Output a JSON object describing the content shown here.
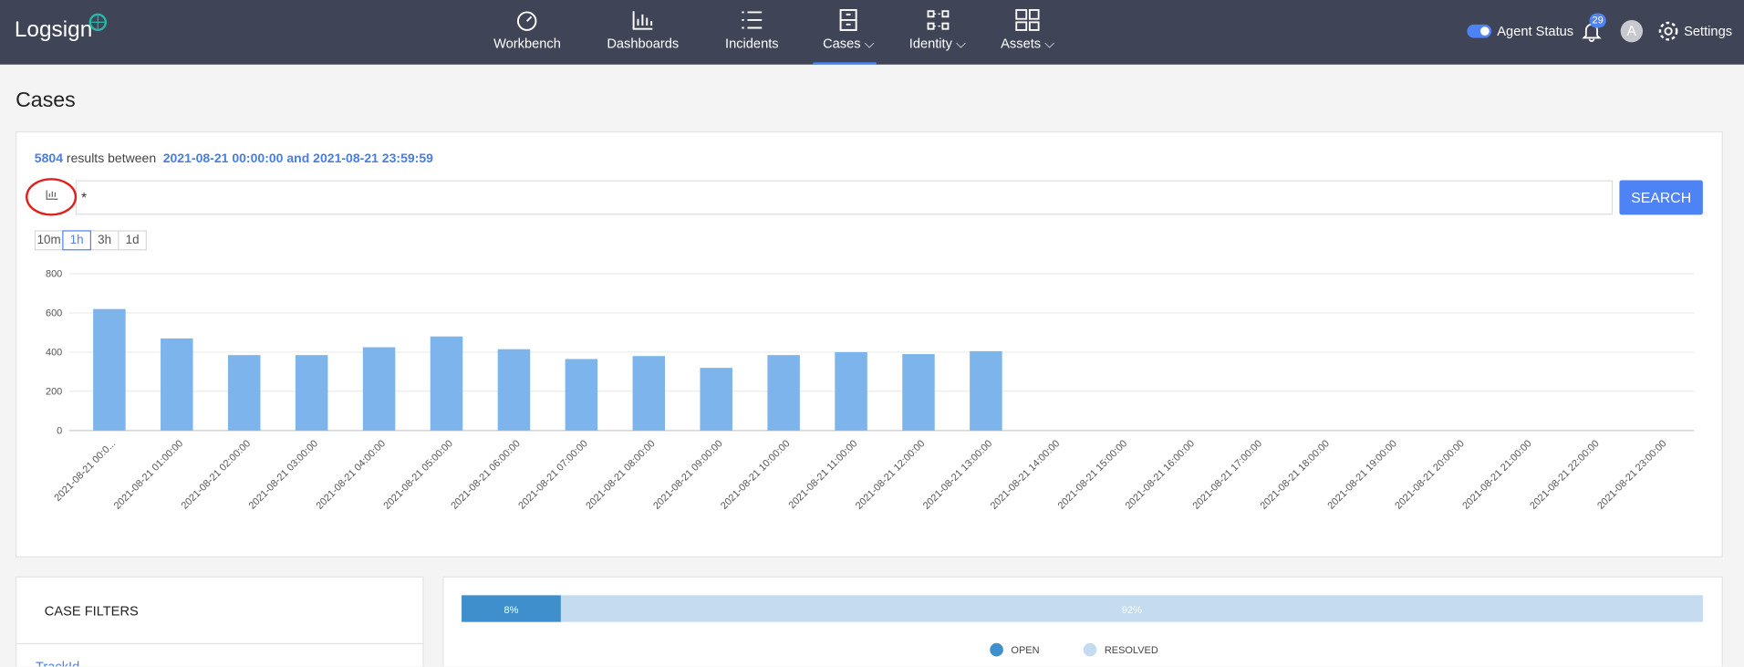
{
  "nav": {
    "logo": "Logsign",
    "items": [
      "Workbench",
      "Dashboards",
      "Incidents",
      "Cases",
      "Identity",
      "Assets"
    ],
    "agent_status": "Agent Status",
    "notifications": "29",
    "avatar": "A",
    "settings": "Settings"
  },
  "page_title": "Cases",
  "results": {
    "count": "5804",
    "between": "results between",
    "range": "2021-08-21 00:00:00 and 2021-08-21 23:59:59"
  },
  "search": {
    "query": "*",
    "button": "SEARCH"
  },
  "intervals": [
    "10m",
    "1h",
    "3h",
    "1d"
  ],
  "chart_data": {
    "type": "bar",
    "color": "#7db4ec",
    "grid": true,
    "ylim": [
      0,
      800
    ],
    "yticks": [
      0,
      200,
      400,
      600,
      800
    ],
    "categories": [
      "2021-08-21 00:0...",
      "2021-08-21 01:00:00",
      "2021-08-21 02:00:00",
      "2021-08-21 03:00:00",
      "2021-08-21 04:00:00",
      "2021-08-21 05:00:00",
      "2021-08-21 06:00:00",
      "2021-08-21 07:00:00",
      "2021-08-21 08:00:00",
      "2021-08-21 09:00:00",
      "2021-08-21 10:00:00",
      "2021-08-21 11:00:00",
      "2021-08-21 12:00:00",
      "2021-08-21 13:00:00",
      "2021-08-21 14:00:00",
      "2021-08-21 15:00:00",
      "2021-08-21 16:00:00",
      "2021-08-21 17:00:00",
      "2021-08-21 18:00:00",
      "2021-08-21 19:00:00",
      "2021-08-21 20:00:00",
      "2021-08-21 21:00:00",
      "2021-08-21 22:00:00",
      "2021-08-21 23:00:00"
    ],
    "values": [
      620,
      470,
      385,
      385,
      425,
      480,
      415,
      365,
      380,
      320,
      385,
      400,
      390,
      405,
      0,
      0,
      0,
      0,
      0,
      0,
      0,
      0,
      0,
      0
    ]
  },
  "case_filters": {
    "title": "CASE FILTERS",
    "first": "TrackId"
  },
  "status_bar": {
    "categories": [
      "OPEN",
      "RESOLVED"
    ],
    "values": [
      8,
      92
    ],
    "value_labels": [
      "8%",
      "92%"
    ],
    "colors": [
      "#3f8fcc",
      "#c5dbf0"
    ]
  }
}
